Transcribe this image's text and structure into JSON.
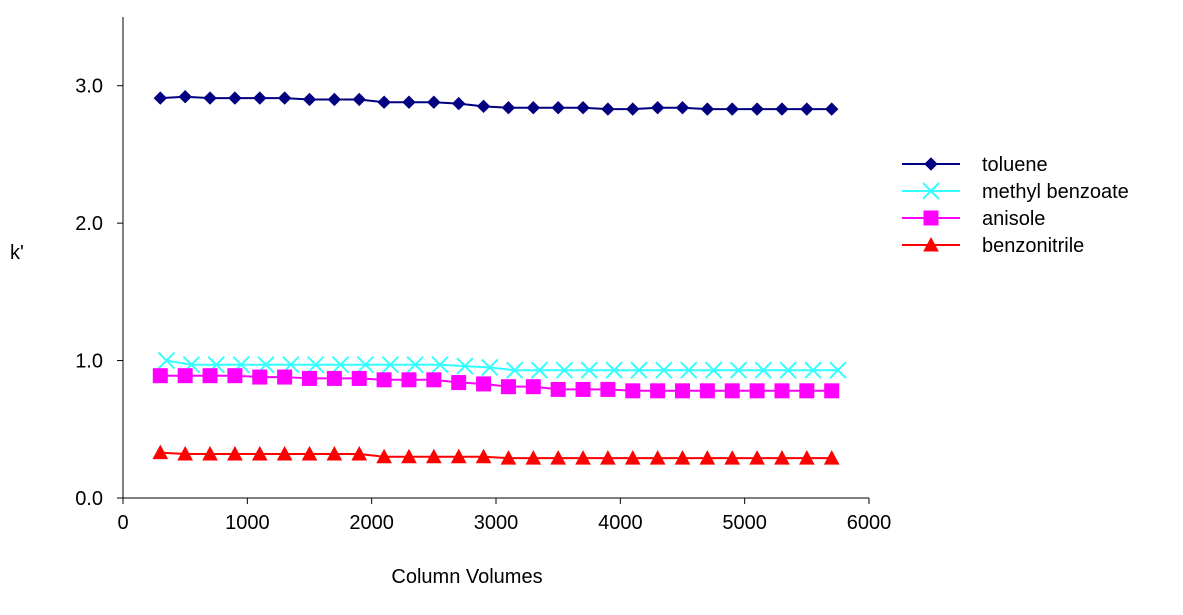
{
  "chart_data": {
    "type": "line",
    "title": "",
    "xlabel": "Column Volumes",
    "ylabel": "k'",
    "xlim": [
      0,
      6000
    ],
    "ylim": [
      0,
      3.5
    ],
    "x_ticks": [
      "0",
      "1000",
      "2000",
      "3000",
      "4000",
      "5000",
      "6000"
    ],
    "y_ticks": [
      "0.0",
      "1.0",
      "2.0",
      "3.0"
    ],
    "grid": false,
    "legend_position": "right",
    "series": [
      {
        "name": "toluene",
        "color": "#000080",
        "marker": "diamond",
        "x": [
          300,
          500,
          700,
          900,
          1100,
          1300,
          1500,
          1700,
          1900,
          2100,
          2300,
          2500,
          2700,
          2900,
          3100,
          3300,
          3500,
          3700,
          3900,
          4100,
          4300,
          4500,
          4700,
          4900,
          5100,
          5300,
          5500,
          5700
        ],
        "values": [
          2.91,
          2.92,
          2.91,
          2.91,
          2.91,
          2.91,
          2.9,
          2.9,
          2.9,
          2.88,
          2.88,
          2.88,
          2.87,
          2.85,
          2.84,
          2.84,
          2.84,
          2.84,
          2.83,
          2.83,
          2.84,
          2.84,
          2.83,
          2.83,
          2.83,
          2.83,
          2.83,
          2.83
        ]
      },
      {
        "name": "methyl benzoate",
        "color": "#33FFFF",
        "marker": "x",
        "x": [
          350,
          550,
          750,
          950,
          1150,
          1350,
          1550,
          1750,
          1950,
          2150,
          2350,
          2550,
          2750,
          2950,
          3150,
          3350,
          3550,
          3750,
          3950,
          4150,
          4350,
          4550,
          4750,
          4950,
          5150,
          5350,
          5550,
          5750
        ],
        "values": [
          1.0,
          0.97,
          0.97,
          0.97,
          0.97,
          0.97,
          0.97,
          0.97,
          0.97,
          0.97,
          0.97,
          0.97,
          0.96,
          0.95,
          0.93,
          0.93,
          0.93,
          0.93,
          0.93,
          0.93,
          0.93,
          0.93,
          0.93,
          0.93,
          0.93,
          0.93,
          0.93,
          0.93
        ]
      },
      {
        "name": "anisole",
        "color": "#FF00FF",
        "marker": "square",
        "x": [
          300,
          500,
          700,
          900,
          1100,
          1300,
          1500,
          1700,
          1900,
          2100,
          2300,
          2500,
          2700,
          2900,
          3100,
          3300,
          3500,
          3700,
          3900,
          4100,
          4300,
          4500,
          4700,
          4900,
          5100,
          5300,
          5500,
          5700
        ],
        "values": [
          0.89,
          0.89,
          0.89,
          0.89,
          0.88,
          0.88,
          0.87,
          0.87,
          0.87,
          0.86,
          0.86,
          0.86,
          0.84,
          0.83,
          0.81,
          0.81,
          0.79,
          0.79,
          0.79,
          0.78,
          0.78,
          0.78,
          0.78,
          0.78,
          0.78,
          0.78,
          0.78,
          0.78
        ]
      },
      {
        "name": "benzonitrile",
        "color": "#FF0000",
        "marker": "triangle",
        "x": [
          300,
          500,
          700,
          900,
          1100,
          1300,
          1500,
          1700,
          1900,
          2100,
          2300,
          2500,
          2700,
          2900,
          3100,
          3300,
          3500,
          3700,
          3900,
          4100,
          4300,
          4500,
          4700,
          4900,
          5100,
          5300,
          5500,
          5700
        ],
        "values": [
          0.33,
          0.32,
          0.32,
          0.32,
          0.32,
          0.32,
          0.32,
          0.32,
          0.32,
          0.3,
          0.3,
          0.3,
          0.3,
          0.3,
          0.29,
          0.29,
          0.29,
          0.29,
          0.29,
          0.29,
          0.29,
          0.29,
          0.29,
          0.29,
          0.29,
          0.29,
          0.29,
          0.29
        ]
      }
    ]
  }
}
